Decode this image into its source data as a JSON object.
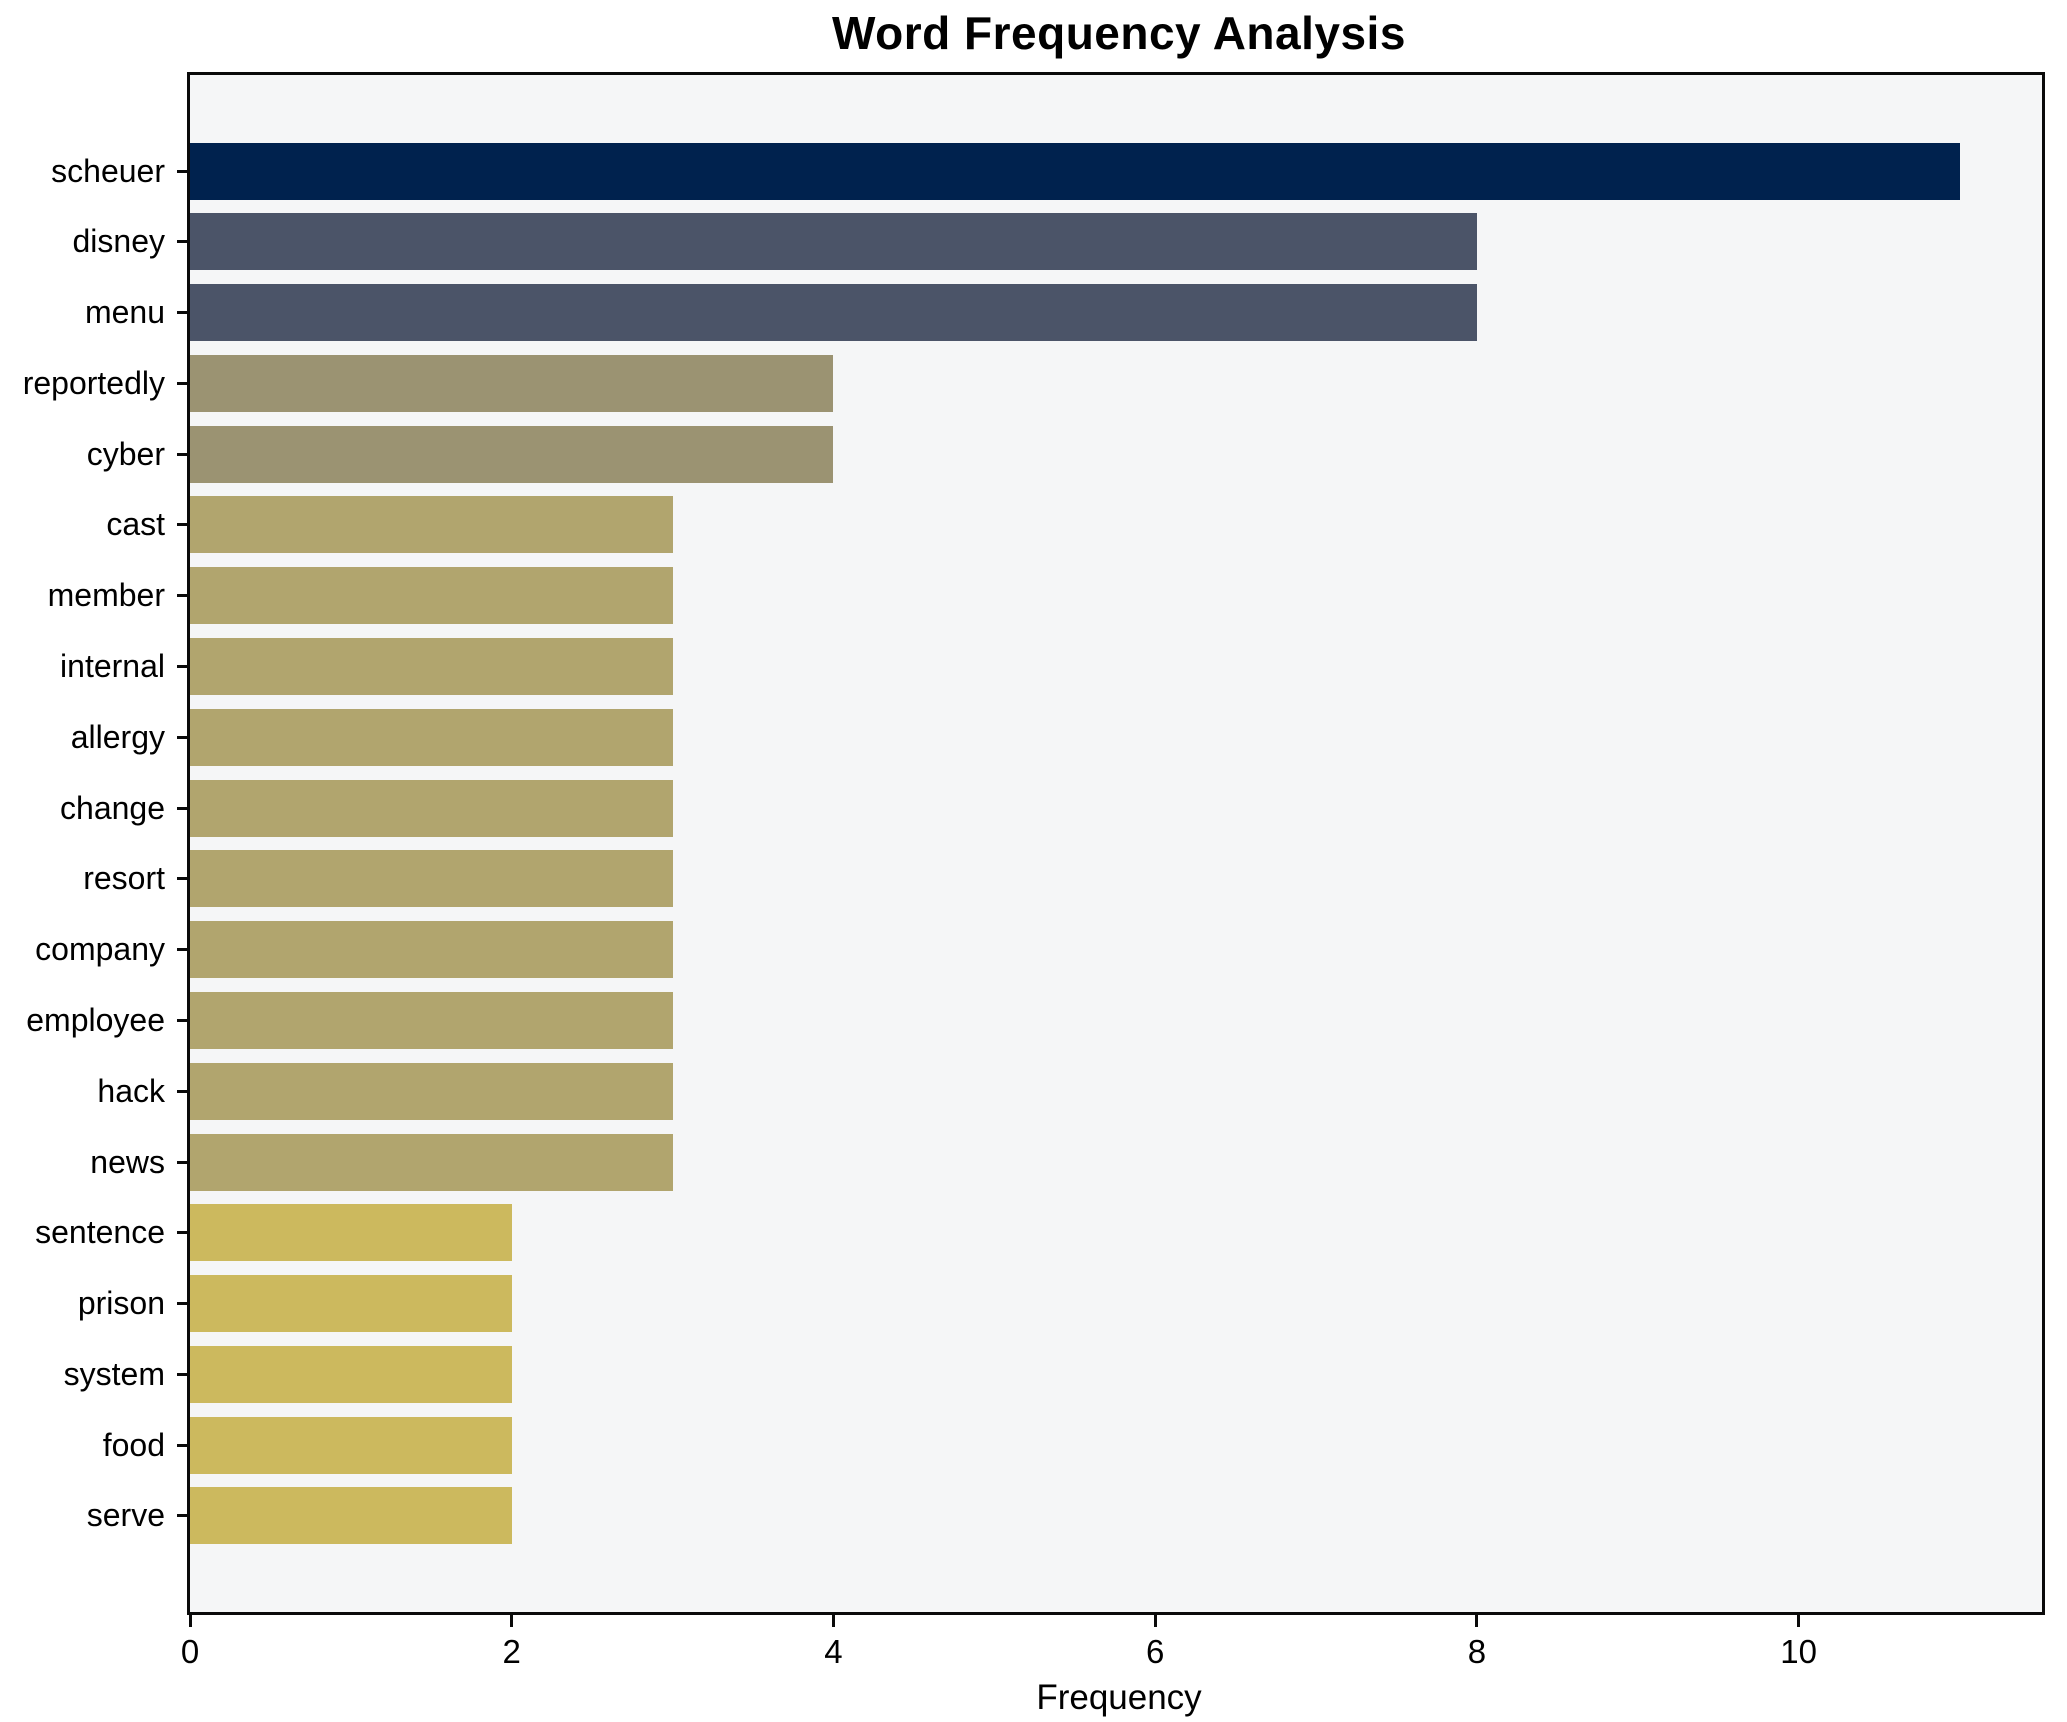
{
  "title": "Word Frequency Analysis",
  "x_axis_label": "Frequency",
  "chart_data": {
    "type": "bar",
    "orientation": "horizontal",
    "title": "Word Frequency Analysis",
    "xlabel": "Frequency",
    "ylabel": "",
    "xlim": [
      0,
      11.55
    ],
    "xticks": [
      0,
      2,
      4,
      6,
      8,
      10
    ],
    "grid": false,
    "legend": false,
    "plot_background": "#f5f6f7",
    "bar_height_ratio": 0.8,
    "categories": [
      "scheuer",
      "disney",
      "menu",
      "reportedly",
      "cyber",
      "cast",
      "member",
      "internal",
      "allergy",
      "change",
      "resort",
      "company",
      "employee",
      "hack",
      "news",
      "sentence",
      "prison",
      "system",
      "food",
      "serve"
    ],
    "values": [
      11,
      8,
      8,
      4,
      4,
      3,
      3,
      3,
      3,
      3,
      3,
      3,
      3,
      3,
      3,
      2,
      2,
      2,
      2,
      2
    ],
    "bar_colors": [
      "#00224e",
      "#4b5468",
      "#4b5468",
      "#9b9372",
      "#9b9372",
      "#b1a56e",
      "#b1a56e",
      "#b1a56e",
      "#b1a56e",
      "#b1a56e",
      "#b1a56e",
      "#b1a56e",
      "#b1a56e",
      "#b1a56e",
      "#b1a56e",
      "#ccb95e",
      "#ccb95e",
      "#ccb95e",
      "#ccb95e",
      "#ccb95e"
    ],
    "value_color_map": {
      "11": "#00224e",
      "8": "#4b5468",
      "4": "#9b9372",
      "3": "#b1a56e",
      "2": "#ccb95e"
    }
  }
}
